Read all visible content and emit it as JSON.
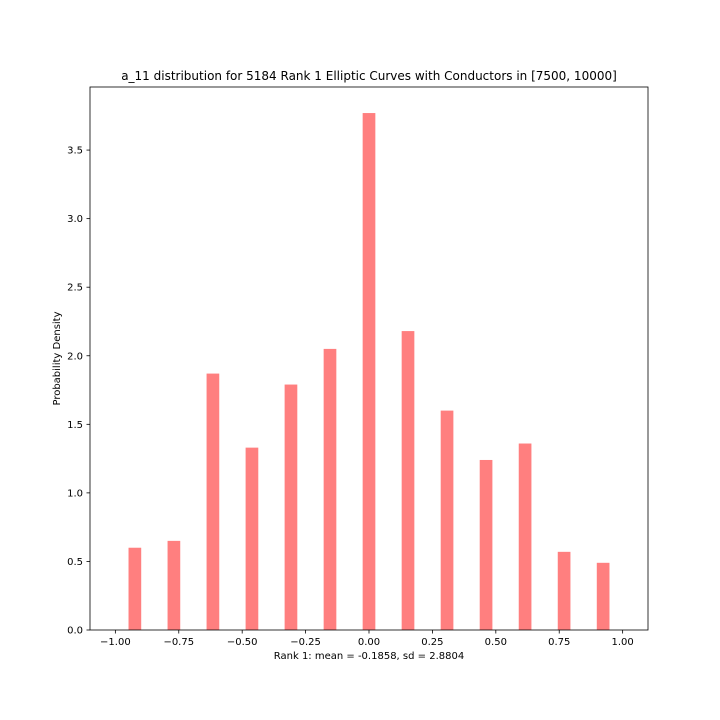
{
  "chart_data": {
    "type": "bar",
    "title": "a_11 distribution for 5184 Rank 1 Elliptic Curves with Conductors in [7500, 10000]",
    "xlabel": "Rank 1: mean = -0.1858, sd = 2.8804",
    "ylabel": "Probability Density",
    "bar_color": "#ff7f7f",
    "xlim": [
      -1.1,
      1.1
    ],
    "ylim": [
      0,
      3.96
    ],
    "bar_width": 0.05,
    "x": [
      -0.9231,
      -0.7692,
      -0.6154,
      -0.4615,
      -0.3077,
      -0.1538,
      0.0,
      0.1538,
      0.3077,
      0.4615,
      0.6154,
      0.7692,
      0.9231
    ],
    "values": [
      0.6,
      0.65,
      1.87,
      1.33,
      1.79,
      2.05,
      3.77,
      2.18,
      1.6,
      1.24,
      1.36,
      0.57,
      0.49
    ],
    "xticks": [
      -1.0,
      -0.75,
      -0.5,
      -0.25,
      0.0,
      0.25,
      0.5,
      0.75,
      1.0
    ],
    "xtick_labels": [
      "−1.00",
      "−0.75",
      "−0.50",
      "−0.25",
      "0.00",
      "0.25",
      "0.50",
      "0.75",
      "1.00"
    ],
    "yticks": [
      0.0,
      0.5,
      1.0,
      1.5,
      2.0,
      2.5,
      3.0,
      3.5
    ],
    "ytick_labels": [
      "0.0",
      "0.5",
      "1.0",
      "1.5",
      "2.0",
      "2.5",
      "3.0",
      "3.5"
    ],
    "grid": false,
    "legend": false
  }
}
